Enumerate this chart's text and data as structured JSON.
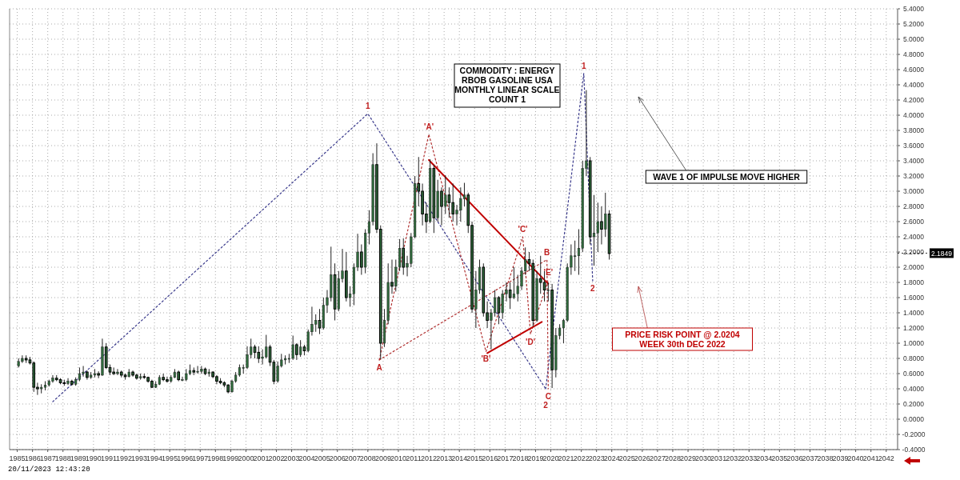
{
  "chart_data": {
    "type": "candlestick",
    "title": "COMMODITY : ENERGY\nRBOB GASOLINE USA\nMONTHLY LINEAR SCALE\nCOUNT 1",
    "xlim": [
      "1984-07",
      "2042-10"
    ],
    "xticks": [
      "1985",
      "1986",
      "1987",
      "1988",
      "1989",
      "1990",
      "1991",
      "1992",
      "1993",
      "1994",
      "1995",
      "1996",
      "1997",
      "1998",
      "1999",
      "2000",
      "2001",
      "2002",
      "2003",
      "2004",
      "2005",
      "2006",
      "2007",
      "2008",
      "2009",
      "2010",
      "2011",
      "2012",
      "2013",
      "2014",
      "2015",
      "2016",
      "2017",
      "2018",
      "2019",
      "2020",
      "2021",
      "2022",
      "2023",
      "2024",
      "2025",
      "2026",
      "2027",
      "2028",
      "2029",
      "2030",
      "2031",
      "2032",
      "2033",
      "2034",
      "2035",
      "2036",
      "2037",
      "2038",
      "2039",
      "2040",
      "2041",
      "2042"
    ],
    "ylim": [
      -0.4,
      5.4
    ],
    "yticks": [
      {
        "value": -0.4,
        "label": "-0.4000"
      },
      {
        "value": -0.2,
        "label": "-0.2000"
      },
      {
        "value": 0,
        "label": "0.0000"
      },
      {
        "value": 0.2,
        "label": "0.2000"
      },
      {
        "value": 0.4,
        "label": "0.4000"
      },
      {
        "value": 0.6,
        "label": "0.6000"
      },
      {
        "value": 0.8,
        "label": "0.8000"
      },
      {
        "value": 1,
        "label": "1.0000"
      },
      {
        "value": 1.2,
        "label": "1.2000"
      },
      {
        "value": 1.4,
        "label": "1.4000"
      },
      {
        "value": 1.6,
        "label": "1.6000"
      },
      {
        "value": 1.8,
        "label": "1.8000"
      },
      {
        "value": 2,
        "label": "2.0000"
      },
      {
        "value": 2.2,
        "label": "2.2000"
      },
      {
        "value": 2.4,
        "label": "2.4000"
      },
      {
        "value": 2.6,
        "label": "2.6000"
      },
      {
        "value": 2.8,
        "label": "2.8000"
      },
      {
        "value": 3,
        "label": "3.0000"
      },
      {
        "value": 3.2,
        "label": "3.2000"
      },
      {
        "value": 3.4,
        "label": "3.4000"
      },
      {
        "value": 3.6,
        "label": "3.6000"
      },
      {
        "value": 3.8,
        "label": "3.8000"
      },
      {
        "value": 4,
        "label": "4.0000"
      },
      {
        "value": 4.2,
        "label": "4.2000"
      },
      {
        "value": 4.4,
        "label": "4.4000"
      },
      {
        "value": 4.6,
        "label": "4.6000"
      },
      {
        "value": 4.8,
        "label": "4.8000"
      },
      {
        "value": 5,
        "label": "5.0000"
      },
      {
        "value": 5.2,
        "label": "5.2000"
      },
      {
        "value": 5.4,
        "label": "5.4000"
      }
    ],
    "grid": true,
    "series": [
      {
        "color": "#2f6b3c",
        "x": [
          "1985-02",
          "1985-05",
          "1985-08",
          "1985-11",
          "1986-02",
          "1986-05",
          "1986-08",
          "1986-11",
          "1987-02",
          "1987-05",
          "1987-08",
          "1987-11",
          "1988-02",
          "1988-05",
          "1988-08",
          "1988-11",
          "1989-02",
          "1989-05",
          "1989-08",
          "1989-11",
          "1990-02",
          "1990-05",
          "1990-08",
          "1990-11",
          "1991-02",
          "1991-05",
          "1991-08",
          "1991-11",
          "1992-02",
          "1992-05",
          "1992-08",
          "1992-11",
          "1993-02",
          "1993-05",
          "1993-08",
          "1993-11",
          "1994-02",
          "1994-05",
          "1994-08",
          "1994-11",
          "1995-02",
          "1995-05",
          "1995-08",
          "1995-11",
          "1996-02",
          "1996-05",
          "1996-08",
          "1996-11",
          "1997-02",
          "1997-05",
          "1997-08",
          "1997-11",
          "1998-02",
          "1998-05",
          "1998-08",
          "1998-11",
          "1999-02",
          "1999-05",
          "1999-08",
          "1999-11",
          "2000-02",
          "2000-05",
          "2000-08",
          "2000-11",
          "2001-02",
          "2001-05",
          "2001-08",
          "2001-11",
          "2002-02",
          "2002-05",
          "2002-08",
          "2002-11",
          "2003-02",
          "2003-05",
          "2003-08",
          "2003-11",
          "2004-02",
          "2004-05",
          "2004-08",
          "2004-11",
          "2005-02",
          "2005-05",
          "2005-08",
          "2005-11",
          "2006-02",
          "2006-05",
          "2006-08",
          "2006-11",
          "2007-02",
          "2007-05",
          "2007-08",
          "2007-11",
          "2008-02",
          "2008-05",
          "2008-08",
          "2008-11",
          "2009-02",
          "2009-05",
          "2009-08",
          "2009-11",
          "2010-02",
          "2010-05",
          "2010-08",
          "2010-11",
          "2011-02",
          "2011-05",
          "2011-08",
          "2011-11",
          "2012-02",
          "2012-05",
          "2012-08",
          "2012-11",
          "2013-02",
          "2013-05",
          "2013-08",
          "2013-11",
          "2014-02",
          "2014-05",
          "2014-08",
          "2014-11",
          "2015-02",
          "2015-05",
          "2015-08",
          "2015-11",
          "2016-02",
          "2016-05",
          "2016-08",
          "2016-11",
          "2017-02",
          "2017-05",
          "2017-08",
          "2017-11",
          "2018-02",
          "2018-05",
          "2018-08",
          "2018-11",
          "2019-02",
          "2019-05",
          "2019-08",
          "2019-11",
          "2020-02",
          "2020-05",
          "2020-08",
          "2020-11",
          "2021-02",
          "2021-05",
          "2021-08",
          "2021-11",
          "2022-02",
          "2022-05",
          "2022-08",
          "2022-11",
          "2023-02",
          "2023-05",
          "2023-08",
          "2023-11"
        ],
        "ohlc": [
          [
            0.7,
            0.8,
            0.68,
            0.76
          ],
          [
            0.76,
            0.84,
            0.74,
            0.8
          ],
          [
            0.8,
            0.84,
            0.74,
            0.78
          ],
          [
            0.78,
            0.82,
            0.72,
            0.74
          ],
          [
            0.74,
            0.76,
            0.36,
            0.42
          ],
          [
            0.42,
            0.48,
            0.32,
            0.4
          ],
          [
            0.4,
            0.46,
            0.34,
            0.42
          ],
          [
            0.42,
            0.5,
            0.38,
            0.45
          ],
          [
            0.45,
            0.52,
            0.43,
            0.5
          ],
          [
            0.5,
            0.58,
            0.48,
            0.54
          ],
          [
            0.54,
            0.58,
            0.5,
            0.52
          ],
          [
            0.52,
            0.54,
            0.46,
            0.48
          ],
          [
            0.48,
            0.52,
            0.44,
            0.47
          ],
          [
            0.47,
            0.54,
            0.45,
            0.5
          ],
          [
            0.5,
            0.52,
            0.44,
            0.46
          ],
          [
            0.46,
            0.55,
            0.44,
            0.52
          ],
          [
            0.52,
            0.68,
            0.5,
            0.6
          ],
          [
            0.6,
            0.7,
            0.56,
            0.62
          ],
          [
            0.62,
            0.64,
            0.52,
            0.55
          ],
          [
            0.55,
            0.62,
            0.53,
            0.58
          ],
          [
            0.58,
            0.66,
            0.55,
            0.6
          ],
          [
            0.6,
            0.63,
            0.54,
            0.58
          ],
          [
            0.58,
            1.06,
            0.57,
            0.95
          ],
          [
            0.95,
            1.0,
            0.66,
            0.68
          ],
          [
            0.68,
            0.72,
            0.58,
            0.62
          ],
          [
            0.62,
            0.68,
            0.58,
            0.6
          ],
          [
            0.6,
            0.66,
            0.58,
            0.62
          ],
          [
            0.62,
            0.64,
            0.55,
            0.58
          ],
          [
            0.58,
            0.6,
            0.52,
            0.56
          ],
          [
            0.56,
            0.66,
            0.55,
            0.62
          ],
          [
            0.62,
            0.64,
            0.56,
            0.58
          ],
          [
            0.58,
            0.6,
            0.52,
            0.54
          ],
          [
            0.54,
            0.6,
            0.52,
            0.56
          ],
          [
            0.56,
            0.6,
            0.53,
            0.55
          ],
          [
            0.55,
            0.56,
            0.48,
            0.5
          ],
          [
            0.5,
            0.52,
            0.41,
            0.42
          ],
          [
            0.42,
            0.5,
            0.41,
            0.46
          ],
          [
            0.46,
            0.58,
            0.45,
            0.55
          ],
          [
            0.55,
            0.6,
            0.5,
            0.52
          ],
          [
            0.52,
            0.56,
            0.48,
            0.5
          ],
          [
            0.5,
            0.58,
            0.48,
            0.55
          ],
          [
            0.55,
            0.66,
            0.54,
            0.62
          ],
          [
            0.62,
            0.64,
            0.5,
            0.52
          ],
          [
            0.52,
            0.56,
            0.5,
            0.52
          ],
          [
            0.52,
            0.66,
            0.5,
            0.6
          ],
          [
            0.6,
            0.72,
            0.58,
            0.64
          ],
          [
            0.64,
            0.68,
            0.58,
            0.62
          ],
          [
            0.62,
            0.7,
            0.6,
            0.63
          ],
          [
            0.63,
            0.7,
            0.6,
            0.66
          ],
          [
            0.66,
            0.68,
            0.58,
            0.6
          ],
          [
            0.6,
            0.66,
            0.56,
            0.62
          ],
          [
            0.62,
            0.63,
            0.54,
            0.56
          ],
          [
            0.56,
            0.58,
            0.46,
            0.5
          ],
          [
            0.5,
            0.54,
            0.46,
            0.48
          ],
          [
            0.48,
            0.5,
            0.42,
            0.45
          ],
          [
            0.45,
            0.46,
            0.34,
            0.36
          ],
          [
            0.36,
            0.52,
            0.35,
            0.5
          ],
          [
            0.5,
            0.62,
            0.48,
            0.58
          ],
          [
            0.58,
            0.72,
            0.56,
            0.68
          ],
          [
            0.68,
            0.72,
            0.6,
            0.68
          ],
          [
            0.68,
            0.96,
            0.66,
            0.85
          ],
          [
            0.85,
            1.06,
            0.8,
            0.95
          ],
          [
            0.95,
            0.98,
            0.8,
            0.88
          ],
          [
            0.88,
            0.96,
            0.74,
            0.8
          ],
          [
            0.8,
            0.92,
            0.72,
            0.82
          ],
          [
            0.82,
            1.11,
            0.8,
            0.95
          ],
          [
            0.95,
            0.98,
            0.7,
            0.75
          ],
          [
            0.75,
            0.78,
            0.46,
            0.5
          ],
          [
            0.5,
            0.76,
            0.48,
            0.7
          ],
          [
            0.7,
            0.86,
            0.68,
            0.78
          ],
          [
            0.78,
            0.84,
            0.72,
            0.8
          ],
          [
            0.8,
            0.86,
            0.74,
            0.8
          ],
          [
            0.8,
            1.1,
            0.78,
            0.98
          ],
          [
            0.98,
            1.0,
            0.78,
            0.85
          ],
          [
            0.85,
            1.04,
            0.82,
            0.95
          ],
          [
            0.95,
            0.98,
            0.84,
            0.9
          ],
          [
            0.9,
            1.18,
            0.88,
            1.15
          ],
          [
            1.15,
            1.48,
            1.1,
            1.25
          ],
          [
            1.25,
            1.38,
            1.15,
            1.3
          ],
          [
            1.3,
            1.45,
            1.12,
            1.2
          ],
          [
            1.2,
            1.6,
            1.18,
            1.5
          ],
          [
            1.5,
            1.7,
            1.4,
            1.6
          ],
          [
            1.6,
            2.27,
            1.55,
            1.9
          ],
          [
            1.9,
            2.05,
            1.3,
            1.45
          ],
          [
            1.45,
            1.95,
            1.42,
            1.85
          ],
          [
            1.85,
            2.24,
            1.8,
            1.95
          ],
          [
            1.95,
            2.2,
            1.55,
            1.6
          ],
          [
            1.6,
            1.75,
            1.48,
            1.65
          ],
          [
            1.65,
            2.05,
            1.5,
            2.0
          ],
          [
            2.0,
            2.44,
            1.95,
            2.2
          ],
          [
            2.2,
            2.3,
            1.9,
            2.0
          ],
          [
            2.0,
            2.5,
            1.92,
            2.45
          ],
          [
            2.45,
            2.75,
            2.3,
            2.6
          ],
          [
            2.6,
            3.5,
            2.55,
            3.35
          ],
          [
            3.35,
            3.63,
            2.45,
            2.5
          ],
          [
            2.5,
            2.55,
            0.79,
            1.0
          ],
          [
            1.0,
            1.45,
            0.95,
            1.3
          ],
          [
            1.3,
            2.05,
            1.25,
            1.8
          ],
          [
            1.8,
            2.1,
            1.65,
            1.75
          ],
          [
            1.75,
            2.1,
            1.68,
            2.0
          ],
          [
            2.0,
            2.37,
            1.95,
            2.25
          ],
          [
            2.25,
            2.38,
            1.9,
            2.0
          ],
          [
            2.0,
            2.15,
            1.88,
            2.05
          ],
          [
            2.05,
            2.45,
            2.0,
            2.4
          ],
          [
            2.4,
            3.2,
            2.38,
            3.1
          ],
          [
            3.1,
            3.45,
            2.8,
            3.0
          ],
          [
            3.0,
            3.1,
            2.55,
            2.7
          ],
          [
            2.7,
            2.85,
            2.45,
            2.6
          ],
          [
            2.6,
            3.42,
            2.58,
            3.3
          ],
          [
            3.3,
            3.35,
            2.45,
            2.65
          ],
          [
            2.65,
            3.15,
            2.6,
            3.0
          ],
          [
            3.0,
            3.05,
            2.55,
            2.8
          ],
          [
            2.8,
            3.21,
            2.7,
            2.95
          ],
          [
            2.95,
            3.05,
            2.65,
            2.85
          ],
          [
            2.85,
            3.1,
            2.6,
            2.7
          ],
          [
            2.7,
            2.82,
            2.55,
            2.75
          ],
          [
            2.75,
            3.05,
            2.6,
            2.9
          ],
          [
            2.9,
            3.11,
            2.8,
            2.95
          ],
          [
            2.95,
            2.98,
            2.45,
            2.55
          ],
          [
            2.55,
            2.6,
            1.4,
            1.45
          ],
          [
            1.45,
            1.95,
            1.2,
            1.7
          ],
          [
            1.7,
            2.1,
            1.65,
            2.0
          ],
          [
            2.0,
            2.05,
            1.35,
            1.4
          ],
          [
            1.4,
            1.55,
            1.2,
            1.3
          ],
          [
            1.3,
            1.45,
            0.92,
            1.4
          ],
          [
            1.4,
            1.7,
            1.35,
            1.6
          ],
          [
            1.6,
            1.62,
            1.25,
            1.4
          ],
          [
            1.4,
            1.7,
            1.32,
            1.65
          ],
          [
            1.65,
            1.8,
            1.55,
            1.7
          ],
          [
            1.7,
            1.8,
            1.45,
            1.6
          ],
          [
            1.6,
            2.0,
            1.58,
            1.65
          ],
          [
            1.65,
            1.9,
            1.55,
            1.75
          ],
          [
            1.75,
            2.0,
            1.7,
            1.95
          ],
          [
            1.95,
            2.26,
            1.9,
            2.1
          ],
          [
            2.1,
            2.2,
            1.95,
            2.05
          ],
          [
            2.05,
            2.1,
            1.22,
            1.3
          ],
          [
            1.3,
            1.95,
            1.28,
            1.85
          ],
          [
            1.85,
            2.15,
            1.65,
            1.8
          ],
          [
            1.8,
            1.95,
            1.55,
            1.7
          ],
          [
            1.7,
            1.8,
            1.55,
            1.7
          ],
          [
            1.7,
            1.78,
            0.41,
            0.65
          ],
          [
            0.65,
            1.2,
            0.55,
            1.1
          ],
          [
            1.1,
            1.25,
            1.05,
            1.2
          ],
          [
            1.2,
            1.32,
            1.0,
            1.3
          ],
          [
            1.3,
            2.05,
            1.28,
            2.0
          ],
          [
            2.0,
            2.3,
            1.9,
            2.15
          ],
          [
            2.15,
            2.35,
            1.95,
            2.15
          ],
          [
            2.15,
            2.5,
            1.9,
            2.25
          ],
          [
            2.25,
            3.4,
            2.2,
            3.3
          ],
          [
            3.3,
            4.33,
            3.2,
            3.4
          ],
          [
            3.4,
            3.45,
            2.3,
            2.4
          ],
          [
            2.4,
            2.95,
            2.02,
            2.45
          ],
          [
            2.45,
            2.85,
            2.2,
            2.6
          ],
          [
            2.6,
            2.8,
            2.3,
            2.5
          ],
          [
            2.5,
            2.98,
            2.4,
            2.7
          ],
          [
            2.7,
            2.75,
            2.1,
            2.18
          ]
        ]
      },
      {
        "type": "line",
        "color": "#3a3a8c",
        "line_style": "dotted",
        "x": [
          "1987-05",
          "2008-01",
          "2019-09"
        ],
        "values": [
          0.23,
          4.02,
          0.4
        ]
      },
      {
        "type": "line",
        "color": "#3a3a8c",
        "line_style": "dotted",
        "x": [
          "2019-09",
          "2022-03",
          "2022-10"
        ],
        "values": [
          0.4,
          4.55,
          1.82
        ]
      },
      {
        "type": "line",
        "color": "#b03030",
        "line_style": "dotted",
        "x": [
          "2008-10",
          "2012-01",
          "2015-10",
          "2018-03",
          "2018-09",
          "2019-11"
        ],
        "values": [
          0.78,
          3.75,
          0.89,
          2.4,
          1.12,
          1.83
        ]
      },
      {
        "type": "line",
        "color": "#b03030",
        "line_style": "dotted",
        "x": [
          "2008-10",
          "2019-10",
          "2019-11"
        ],
        "values": [
          0.78,
          2.1,
          0.4
        ]
      },
      {
        "type": "line",
        "color": "#c00000",
        "line_style": "solid",
        "x": [
          "2012-01",
          "2019-11"
        ],
        "values": [
          3.41,
          1.78
        ]
      },
      {
        "type": "line",
        "color": "#c00000",
        "line_style": "solid",
        "x": [
          "2015-11",
          "2019-06"
        ],
        "values": [
          0.87,
          1.28
        ]
      }
    ],
    "annotations": [
      "WAVE 1 OF IMPULSE MOVE HIGHER",
      "PRICE RISK POINT @ 2.0204\nWEEK 30th DEC 2022",
      "20/11/2023 12:43:20",
      {
        "text": "1",
        "x": "2008-01",
        "y": 4.02
      },
      {
        "text": "A",
        "x": "2008-10",
        "y": 0.78
      },
      {
        "text": "'A'",
        "x": "2012-01",
        "y": 3.75
      },
      {
        "text": "'B'",
        "x": "2015-10",
        "y": 0.89
      },
      {
        "text": "'C'",
        "x": "2018-03",
        "y": 2.4
      },
      {
        "text": "'D'",
        "x": "2018-09",
        "y": 1.12
      },
      {
        "text": "'E'",
        "x": "2019-11",
        "y": 1.83
      },
      {
        "text": "B",
        "x": "2019-10",
        "y": 2.1
      },
      {
        "text": "C",
        "x": "2019-11",
        "y": 0.4
      },
      {
        "text": "2",
        "x": "2019-09",
        "y": 0.4
      },
      {
        "text": "1",
        "x": "2022-03",
        "y": 4.55
      },
      {
        "text": "2",
        "x": "2022-10",
        "y": 1.82
      }
    ],
    "ref_lines": [
      {
        "axis": "y",
        "value": 2.1849,
        "label": "2.1849"
      }
    ]
  }
}
